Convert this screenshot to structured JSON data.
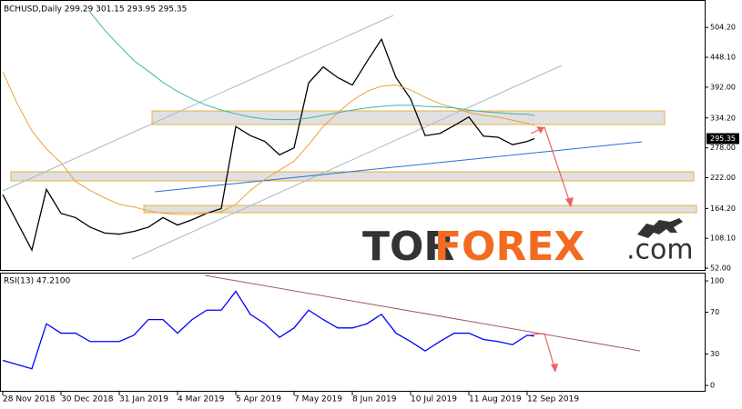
{
  "chart_data": [
    {
      "type": "line",
      "header": "BCHUSD,Daily  299.29 301.15 293.95 295.35",
      "watermark": [
        "TOR",
        "FOREX",
        ".com"
      ],
      "x": [
        "2018-11-28",
        "2018-12-06",
        "2018-12-14",
        "2018-12-22",
        "2018-12-30",
        "2019-01-07",
        "2019-01-15",
        "2019-01-23",
        "2019-01-31",
        "2019-02-08",
        "2019-02-16",
        "2019-02-24",
        "2019-03-04",
        "2019-03-12",
        "2019-03-20",
        "2019-03-28",
        "2019-04-05",
        "2019-04-13",
        "2019-04-21",
        "2019-04-29",
        "2019-05-07",
        "2019-05-15",
        "2019-05-23",
        "2019-05-31",
        "2019-06-08",
        "2019-06-16",
        "2019-06-24",
        "2019-07-02",
        "2019-07-10",
        "2019-07-18",
        "2019-07-26",
        "2019-08-03",
        "2019-08-11",
        "2019-08-19",
        "2019-08-27",
        "2019-09-04",
        "2019-09-12",
        "2019-09-16"
      ],
      "series": [
        {
          "color": "#000000",
          "values": [
            190,
            138,
            86,
            200,
            155,
            147,
            129,
            118,
            116,
            121,
            129,
            147,
            133,
            143,
            155,
            164,
            318,
            301,
            290,
            265,
            278,
            400,
            430,
            410,
            396,
            440,
            482,
            410,
            370,
            301,
            305,
            320,
            336,
            300,
            298,
            284,
            290,
            295.35
          ]
        },
        {
          "color": "#e8a33d",
          "values": [
            421,
            361,
            310,
            276,
            250,
            215,
            198,
            184,
            172,
            167,
            160,
            155,
            153,
            153,
            155,
            158,
            172,
            198,
            219,
            236,
            253,
            284,
            318,
            344,
            367,
            384,
            394,
            396,
            387,
            373,
            361,
            353,
            344,
            339,
            336,
            330,
            324,
            320
          ]
        },
        {
          "color": "#3fb3a5",
          "values": [
            null,
            null,
            null,
            null,
            null,
            null,
            533,
            499,
            470,
            442,
            422,
            401,
            384,
            370,
            358,
            349,
            342,
            336,
            332,
            331,
            331,
            334,
            339,
            344,
            349,
            353,
            356,
            358,
            358,
            356,
            355,
            353,
            349,
            346,
            344,
            342,
            341,
            339
          ]
        }
      ],
      "ylim": [
        47,
        554
      ],
      "yticks": [
        {
          "value": 52,
          "label": "52.00"
        },
        {
          "value": 108.1,
          "label": "108.10"
        },
        {
          "value": 164.2,
          "label": "164.20"
        },
        {
          "value": 222,
          "label": "222.00"
        },
        {
          "value": 278,
          "label": "278.00"
        },
        {
          "value": 334.2,
          "label": "334.20"
        },
        {
          "value": 392,
          "label": "392.00"
        },
        {
          "value": 448.1,
          "label": "448.10"
        },
        {
          "value": 504.2,
          "label": "504.20"
        }
      ],
      "xticks": [
        {
          "value": "2018-11-28",
          "label": "28 Nov 2018"
        },
        {
          "value": "2018-12-30",
          "label": "30 Dec 2018"
        },
        {
          "value": "2019-01-31",
          "label": "31 Jan 2019"
        },
        {
          "value": "2019-03-04",
          "label": "4 Mar 2019"
        },
        {
          "value": "2019-04-05",
          "label": "5 Apr 2019"
        },
        {
          "value": "2019-05-07",
          "label": "7 May 2019"
        },
        {
          "value": "2019-06-08",
          "label": "8 Jun 2019"
        },
        {
          "value": "2019-07-10",
          "label": "10 Jul 2019"
        },
        {
          "value": "2019-08-11",
          "label": "11 Aug 2019"
        },
        {
          "value": "2019-09-12",
          "label": "12 Sep 2019"
        }
      ]
    },
    {
      "type": "line",
      "header": "RSI(13) 47.2100",
      "series": [
        {
          "color": "#0000ff",
          "values": [
            24,
            20,
            16,
            59,
            50,
            50,
            42,
            42,
            42,
            48,
            63,
            63,
            50,
            63,
            72,
            72,
            90,
            68,
            59,
            46,
            55,
            72,
            63,
            55,
            55,
            59,
            68,
            50,
            42,
            33,
            42,
            50,
            50,
            44,
            42,
            39,
            48,
            47.21
          ]
        }
      ],
      "ylim": [
        -6,
        107
      ],
      "yticks": [
        0,
        30,
        70,
        100
      ]
    }
  ]
}
